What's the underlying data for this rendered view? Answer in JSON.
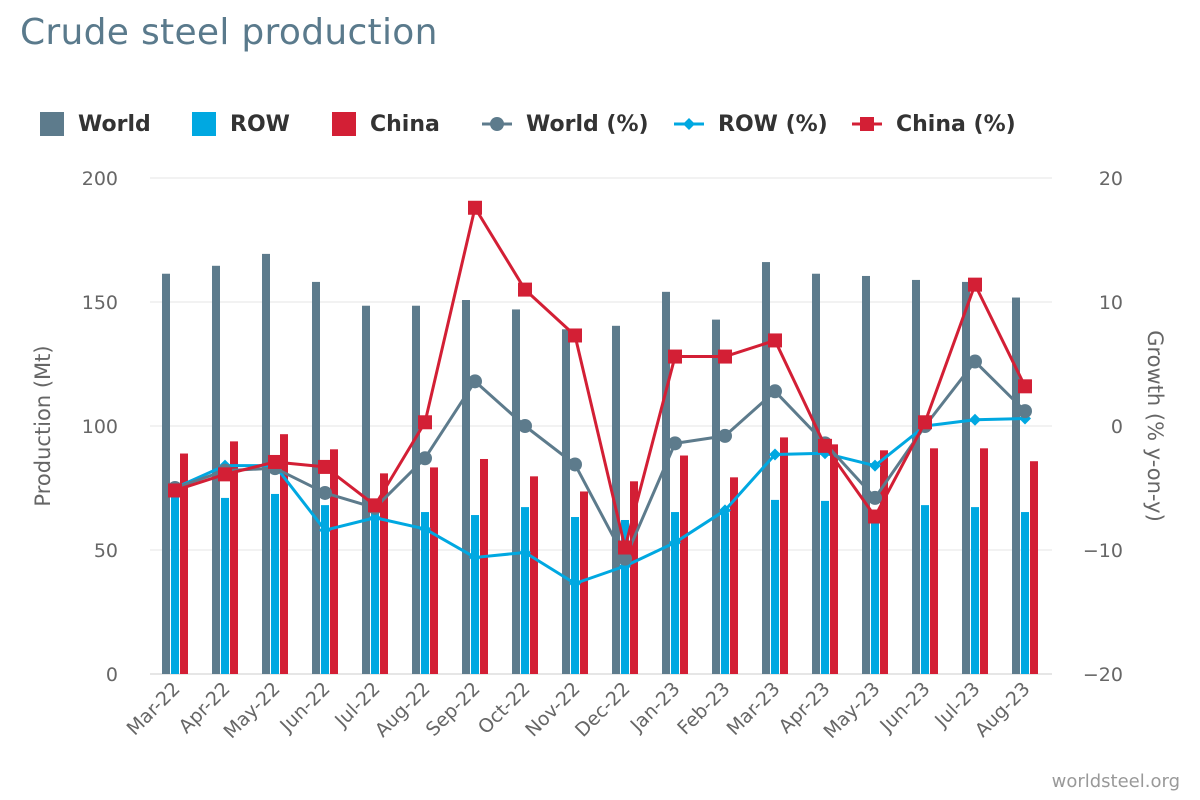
{
  "title": "Crude steel production",
  "credit": "worldsteel.org",
  "colors": {
    "world": "#5d7b8c",
    "row": "#00a8e1",
    "china": "#d31f35"
  },
  "legend": [
    {
      "label": "World",
      "type": "bar",
      "color": "#5d7b8c"
    },
    {
      "label": "ROW",
      "type": "bar",
      "color": "#00a8e1"
    },
    {
      "label": "China",
      "type": "bar",
      "color": "#d31f35"
    },
    {
      "label": "World (%)",
      "type": "line",
      "marker": "circle",
      "color": "#5d7b8c"
    },
    {
      "label": "ROW (%)",
      "type": "line",
      "marker": "diamond",
      "color": "#00a8e1"
    },
    {
      "label": "China (%)",
      "type": "line",
      "marker": "square",
      "color": "#d31f35"
    }
  ],
  "chart_data": {
    "type": "bar",
    "title": "Crude steel production",
    "categories": [
      "Mar-22",
      "Apr-22",
      "May-22",
      "Jun-22",
      "Jul-22",
      "Aug-22",
      "Sep-22",
      "Oct-22",
      "Nov-22",
      "Dec-22",
      "Jan-23",
      "Feb-23",
      "Mar-23",
      "Apr-23",
      "May-23",
      "Jun-23",
      "Jul-23",
      "Aug-23"
    ],
    "ylabel": "Production (Mt)",
    "ylim": [
      0,
      200
    ],
    "yticks": [
      "0",
      "50",
      "100",
      "150",
      "200"
    ],
    "y2label": "Growth (% y-on-y)",
    "y2lim": [
      -20,
      20
    ],
    "y2ticks": [
      "−20",
      "−10",
      "0",
      "10",
      "20"
    ],
    "grid": true,
    "legend_position": "top",
    "series": [
      {
        "name": "World",
        "type": "bar",
        "axis": "left",
        "values": [
          161.4,
          164.6,
          169.4,
          158.1,
          148.5,
          148.5,
          150.8,
          147,
          139,
          140.4,
          154.1,
          142.9,
          166.1,
          161.4,
          160.5,
          158.9,
          158.1,
          151.8
        ]
      },
      {
        "name": "ROW",
        "type": "bar",
        "axis": "left",
        "values": [
          72.6,
          71,
          72.6,
          68.1,
          67.7,
          65.3,
          64.1,
          67.3,
          63.3,
          62.1,
          65.3,
          64.9,
          70.2,
          69.8,
          62.5,
          68.1,
          67.3,
          65.3
        ]
      },
      {
        "name": "China",
        "type": "bar",
        "axis": "left",
        "values": [
          88.9,
          93.8,
          96.7,
          90.6,
          80.9,
          83.3,
          86.7,
          79.7,
          73.6,
          77.7,
          88.1,
          79.3,
          95.4,
          92.6,
          90.2,
          91,
          91,
          85.8
        ]
      },
      {
        "name": "World (%)",
        "type": "line",
        "axis": "right",
        "values": [
          -5,
          -3.6,
          -3.4,
          -5.4,
          -6.6,
          -2.6,
          3.6,
          0,
          -3.1,
          -10.7,
          -1.4,
          -0.8,
          2.8,
          -1.4,
          -5.8,
          0,
          5.2,
          1.2
        ]
      },
      {
        "name": "ROW (%)",
        "type": "line",
        "axis": "right",
        "values": [
          -5,
          -3.2,
          -3.2,
          -8.4,
          -7.4,
          -8.3,
          -10.6,
          -10.2,
          -12.7,
          -11.3,
          -9.4,
          -6.8,
          -2.3,
          -2.2,
          -3.2,
          0,
          0.5,
          0.6
        ]
      },
      {
        "name": "China (%)",
        "type": "line",
        "axis": "right",
        "values": [
          -5.2,
          -3.9,
          -2.9,
          -3.3,
          -6.4,
          0.3,
          17.6,
          11,
          7.3,
          -9.8,
          5.6,
          5.6,
          6.9,
          -1.6,
          -7.3,
          0.3,
          11.4,
          3.2
        ]
      }
    ]
  }
}
